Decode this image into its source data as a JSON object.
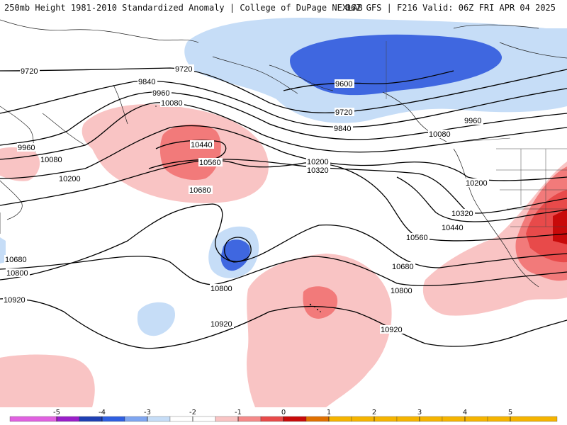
{
  "header": {
    "left_title": "250mb Height 1981-2010 Standardized Anomaly | College of DuPage NEXLAB",
    "right_title": "06Z GFS | F216 Valid: 06Z FRI APR 04 2025"
  },
  "contour_labels": [
    {
      "id": "c9720-w",
      "text": "9720"
    },
    {
      "id": "c9720-c",
      "text": "9720"
    },
    {
      "id": "c9840-w",
      "text": "9840"
    },
    {
      "id": "c9960-w",
      "text": "9960"
    },
    {
      "id": "c10080-w",
      "text": "10080"
    },
    {
      "id": "c9960-fw",
      "text": "9960"
    },
    {
      "id": "c10080-fw",
      "text": "10080"
    },
    {
      "id": "c10200-fw",
      "text": "10200"
    },
    {
      "id": "c10440-w",
      "text": "10440"
    },
    {
      "id": "c10560-w",
      "text": "10560"
    },
    {
      "id": "c10680-w",
      "text": "10680"
    },
    {
      "id": "c9600-e",
      "text": "9600"
    },
    {
      "id": "c9720-e",
      "text": "9720"
    },
    {
      "id": "c9840-e",
      "text": "9840"
    },
    {
      "id": "c9960-e",
      "text": "9960"
    },
    {
      "id": "c10080-e",
      "text": "10080"
    },
    {
      "id": "c10200-c",
      "text": "10200"
    },
    {
      "id": "c10320-c",
      "text": "10320"
    },
    {
      "id": "c10200-e",
      "text": "10200"
    },
    {
      "id": "c10320-e",
      "text": "10320"
    },
    {
      "id": "c10440-e",
      "text": "10440"
    },
    {
      "id": "c10560-e",
      "text": "10560"
    },
    {
      "id": "c10680-e",
      "text": "10680"
    },
    {
      "id": "c10800-e",
      "text": "10800"
    },
    {
      "id": "c10680-fw",
      "text": "10680"
    },
    {
      "id": "c10800-fw",
      "text": "10800"
    },
    {
      "id": "c10800-c",
      "text": "10800"
    },
    {
      "id": "c10920-fw",
      "text": "10920"
    },
    {
      "id": "c10920-c",
      "text": "10920"
    },
    {
      "id": "c10920-e",
      "text": "10920"
    }
  ],
  "colorbar": {
    "ticks": [
      "-5",
      "-4",
      "-3",
      "-2",
      "-1",
      "0",
      "1",
      "2",
      "3",
      "4",
      "5"
    ],
    "colors": [
      "#e061e0",
      "#9a1fc9",
      "#1f3fb3",
      "#2f5fe0",
      "#7fa6f0",
      "#c6ddf7",
      "#ffffff",
      "#ffffff",
      "#f9c4c4",
      "#f58a8a",
      "#e84a4a",
      "#c80a0a",
      "#e07000",
      "#f5b400"
    ]
  }
}
